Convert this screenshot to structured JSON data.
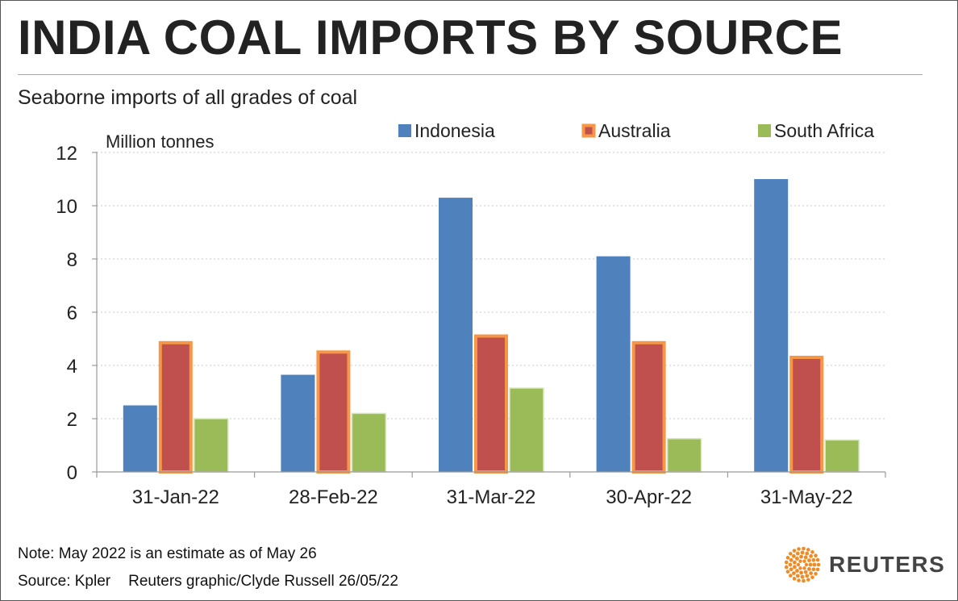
{
  "header": {
    "title": "INDIA COAL IMPORTS BY SOURCE",
    "subtitle": "Seaborne imports of all grades of coal"
  },
  "footer": {
    "note": "Note: May 2022 is an estimate as of May 26",
    "source": "Source: Kpler",
    "credit": "Reuters graphic/Clyde Russell 26/05/22",
    "logo_text": "REUTERS"
  },
  "colors": {
    "indonesia": "#4f81bd",
    "australia_fill": "#c0504d",
    "australia_border": "#f79646",
    "south_africa": "#9bbb59",
    "logo_orange": "#f08a24"
  },
  "chart_data": {
    "type": "bar",
    "title": "INDIA COAL IMPORTS BY SOURCE",
    "subtitle": "Seaborne imports of all grades of coal",
    "ylabel": "Million tonnes",
    "xlabel": "",
    "categories": [
      "31-Jan-22",
      "28-Feb-22",
      "31-Mar-22",
      "30-Apr-22",
      "31-May-22"
    ],
    "series": [
      {
        "name": "Indonesia",
        "values": [
          2.5,
          3.65,
          10.3,
          8.1,
          11.0
        ]
      },
      {
        "name": "Australia",
        "values": [
          4.9,
          4.55,
          5.15,
          4.9,
          4.35
        ]
      },
      {
        "name": "South Africa",
        "values": [
          2.0,
          2.2,
          3.15,
          1.25,
          1.2
        ]
      }
    ],
    "ylim": [
      0,
      12
    ],
    "yticks": [
      "0",
      "2",
      "4",
      "6",
      "8",
      "10",
      "12"
    ],
    "grid": true,
    "legend_position": "top-right"
  }
}
